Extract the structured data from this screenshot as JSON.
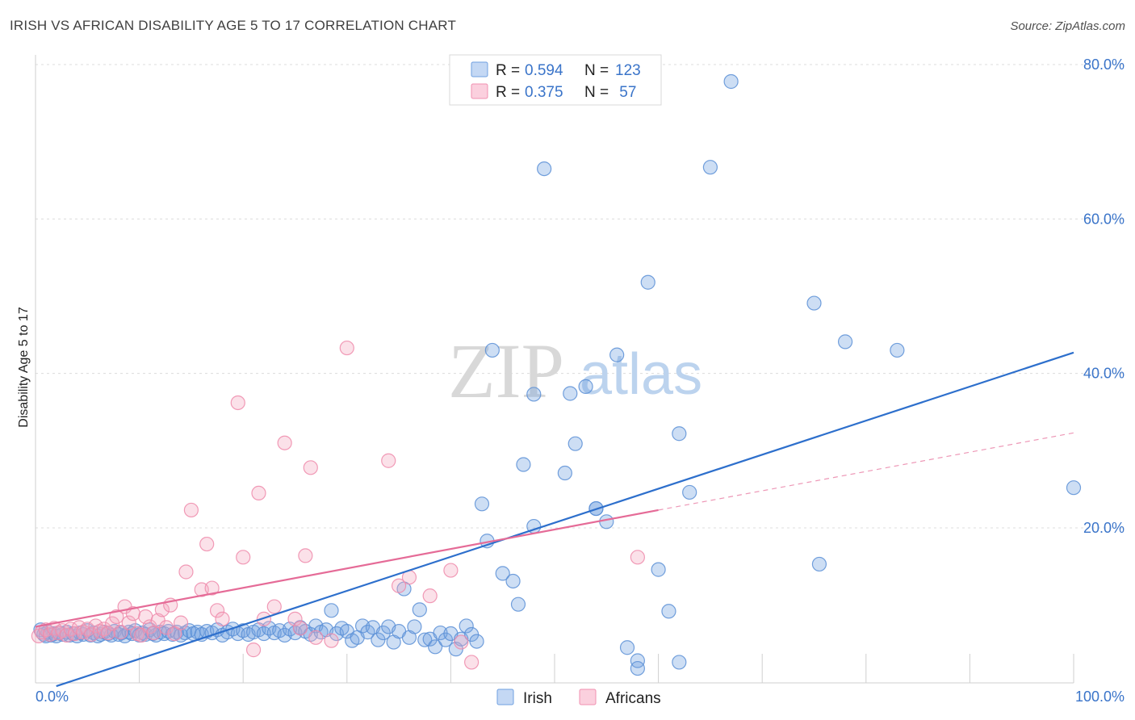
{
  "header": {
    "title": "IRISH VS AFRICAN DISABILITY AGE 5 TO 17 CORRELATION CHART",
    "source": "Source: ZipAtlas.com"
  },
  "watermark": {
    "zip": "ZIP",
    "atlas": "atlas"
  },
  "legend": {
    "rows": [
      {
        "r_label": "R = ",
        "r_value": "0.594",
        "n_label": "N = ",
        "n_value": "123",
        "color": "#6fa0e0"
      },
      {
        "r_label": "R = ",
        "r_value": "0.375",
        "n_label": "N = ",
        "n_value": " 57",
        "color": "#f090b0"
      }
    ]
  },
  "chart_data": {
    "type": "scatter",
    "title": "IRISH VS AFRICAN DISABILITY AGE 5 TO 17 CORRELATION CHART",
    "xlabel": "",
    "ylabel": "Disability Age 5 to 17",
    "xlim": [
      0,
      100
    ],
    "ylim": [
      0,
      80
    ],
    "x_tick_labels": [
      "0.0%",
      "100.0%"
    ],
    "y_ticks": [
      20,
      40,
      60,
      80
    ],
    "y_tick_labels": [
      "20.0%",
      "40.0%",
      "60.0%",
      "80.0%"
    ],
    "grid": true,
    "legend_position": "top-center",
    "series": [
      {
        "name": "Irish",
        "color": "#6fa0e0",
        "stroke": "#5b8fd6",
        "trend": {
          "x": [
            2,
            100
          ],
          "y": [
            -0.5,
            42.7
          ],
          "color": "#2d6fcc"
        },
        "points": [
          [
            0.5,
            6.8
          ],
          [
            0.8,
            6.2
          ],
          [
            1,
            6
          ],
          [
            1.2,
            6.5
          ],
          [
            1.5,
            6.1
          ],
          [
            1.8,
            6.3
          ],
          [
            2,
            6
          ],
          [
            2.3,
            6.4
          ],
          [
            2.6,
            6.2
          ],
          [
            3,
            6.5
          ],
          [
            3.3,
            6.1
          ],
          [
            3.6,
            6.3
          ],
          [
            4,
            6
          ],
          [
            4.3,
            6.4
          ],
          [
            4.6,
            6.2
          ],
          [
            5,
            6.7
          ],
          [
            5.3,
            6.1
          ],
          [
            5.6,
            6.4
          ],
          [
            6,
            6
          ],
          [
            6.3,
            6.2
          ],
          [
            6.6,
            6.5
          ],
          [
            7,
            6.3
          ],
          [
            7.3,
            6.1
          ],
          [
            7.6,
            6.6
          ],
          [
            8,
            6.2
          ],
          [
            8.3,
            6.4
          ],
          [
            8.6,
            6
          ],
          [
            9,
            6.5
          ],
          [
            9.3,
            6.3
          ],
          [
            9.6,
            6.7
          ],
          [
            10,
            6.1
          ],
          [
            10.3,
            6.4
          ],
          [
            10.6,
            6.2
          ],
          [
            11,
            6.8
          ],
          [
            11.3,
            6.3
          ],
          [
            11.6,
            6.1
          ],
          [
            12,
            6.5
          ],
          [
            12.4,
            6.3
          ],
          [
            12.8,
            6.6
          ],
          [
            13.2,
            6.2
          ],
          [
            13.6,
            6.5
          ],
          [
            14,
            6.1
          ],
          [
            14.4,
            6.4
          ],
          [
            14.8,
            6.7
          ],
          [
            15.2,
            6.3
          ],
          [
            15.6,
            6.5
          ],
          [
            16,
            6.2
          ],
          [
            16.5,
            6.6
          ],
          [
            17,
            6.4
          ],
          [
            17.5,
            6.8
          ],
          [
            18,
            6.1
          ],
          [
            18.5,
            6.5
          ],
          [
            19,
            6.9
          ],
          [
            19.5,
            6.3
          ],
          [
            20,
            6.7
          ],
          [
            20.5,
            6.2
          ],
          [
            21,
            6.5
          ],
          [
            21.5,
            6.8
          ],
          [
            22,
            6.3
          ],
          [
            22.5,
            7
          ],
          [
            23,
            6.4
          ],
          [
            23.5,
            6.7
          ],
          [
            24,
            6.1
          ],
          [
            24.5,
            6.9
          ],
          [
            25,
            6.4
          ],
          [
            25.5,
            7.1
          ],
          [
            26,
            6.6
          ],
          [
            26.5,
            6.2
          ],
          [
            27,
            7.3
          ],
          [
            27.5,
            6.5
          ],
          [
            28,
            6.8
          ],
          [
            28.5,
            9.3
          ],
          [
            29,
            6.3
          ],
          [
            29.5,
            7
          ],
          [
            30,
            6.6
          ],
          [
            30.5,
            5.4
          ],
          [
            31,
            5.8
          ],
          [
            31.5,
            7.3
          ],
          [
            32,
            6.5
          ],
          [
            32.5,
            7.1
          ],
          [
            33,
            5.5
          ],
          [
            33.5,
            6.4
          ],
          [
            34,
            7.2
          ],
          [
            34.5,
            5.2
          ],
          [
            35,
            6.6
          ],
          [
            35.5,
            12.1
          ],
          [
            36,
            5.8
          ],
          [
            36.5,
            7.2
          ],
          [
            37,
            9.4
          ],
          [
            37.5,
            5.5
          ],
          [
            38,
            5.6
          ],
          [
            38.5,
            4.6
          ],
          [
            39,
            6.4
          ],
          [
            39.5,
            5.5
          ],
          [
            40,
            6.3
          ],
          [
            40.5,
            4.3
          ],
          [
            41,
            5.6
          ],
          [
            41.5,
            7.3
          ],
          [
            42,
            6.2
          ],
          [
            42.5,
            5.3
          ],
          [
            43,
            23.1
          ],
          [
            43.5,
            18.3
          ],
          [
            44,
            43
          ],
          [
            45,
            14.1
          ],
          [
            46,
            13.1
          ],
          [
            46.5,
            10.1
          ],
          [
            47,
            28.2
          ],
          [
            48,
            20.2
          ],
          [
            48,
            37.3
          ],
          [
            49,
            66.5
          ],
          [
            51,
            27.1
          ],
          [
            51.5,
            37.4
          ],
          [
            52,
            30.9
          ],
          [
            53,
            38.3
          ],
          [
            54,
            22.5
          ],
          [
            54,
            22.5
          ],
          [
            55,
            20.8
          ],
          [
            56,
            42.4
          ],
          [
            57,
            4.5
          ],
          [
            58,
            2.8
          ],
          [
            58,
            1.8
          ],
          [
            59,
            51.8
          ],
          [
            60,
            14.6
          ],
          [
            61,
            9.2
          ],
          [
            62,
            2.6
          ],
          [
            62,
            32.2
          ],
          [
            63,
            24.6
          ],
          [
            65,
            66.7
          ],
          [
            67,
            77.8
          ],
          [
            75,
            49.1
          ],
          [
            75.5,
            15.3
          ],
          [
            78,
            44.1
          ],
          [
            83,
            43
          ],
          [
            100,
            25.2
          ]
        ]
      },
      {
        "name": "Africans",
        "color": "#f4a8c0",
        "stroke": "#ee8aaa",
        "trend": {
          "x": [
            0,
            60
          ],
          "y": [
            7.2,
            22.3
          ],
          "color": "#e56b97"
        },
        "trend_ext": {
          "x": [
            60,
            100
          ],
          "y": [
            22.3,
            32.3
          ]
        },
        "points": [
          [
            0.3,
            6
          ],
          [
            0.6,
            6.5
          ],
          [
            1,
            6.8
          ],
          [
            1.4,
            6.2
          ],
          [
            1.8,
            7
          ],
          [
            2.2,
            6.4
          ],
          [
            2.6,
            6.7
          ],
          [
            3,
            6.1
          ],
          [
            3.4,
            6.9
          ],
          [
            3.8,
            6.3
          ],
          [
            4.2,
            7.1
          ],
          [
            4.6,
            6.5
          ],
          [
            5,
            6.9
          ],
          [
            5.4,
            6.2
          ],
          [
            5.8,
            7.3
          ],
          [
            6.2,
            6.6
          ],
          [
            6.6,
            6.9
          ],
          [
            7,
            6.4
          ],
          [
            7.4,
            7.6
          ],
          [
            7.8,
            8.5
          ],
          [
            8.2,
            6.5
          ],
          [
            8.6,
            9.8
          ],
          [
            9,
            7.7
          ],
          [
            9.4,
            8.9
          ],
          [
            9.8,
            6.3
          ],
          [
            10.2,
            6.1
          ],
          [
            10.6,
            8.5
          ],
          [
            11,
            7.2
          ],
          [
            11.4,
            6.4
          ],
          [
            11.8,
            8
          ],
          [
            12.2,
            9.4
          ],
          [
            12.6,
            7.1
          ],
          [
            13,
            10
          ],
          [
            13.4,
            6.3
          ],
          [
            14,
            7.7
          ],
          [
            14.5,
            14.3
          ],
          [
            15,
            22.3
          ],
          [
            16,
            12
          ],
          [
            16.5,
            17.9
          ],
          [
            17,
            12.2
          ],
          [
            17.5,
            9.3
          ],
          [
            18,
            8.2
          ],
          [
            19.5,
            36.2
          ],
          [
            20,
            16.2
          ],
          [
            21,
            4.2
          ],
          [
            21.5,
            24.5
          ],
          [
            22,
            8.2
          ],
          [
            23,
            9.8
          ],
          [
            24,
            31
          ],
          [
            25,
            8.2
          ],
          [
            25.5,
            7
          ],
          [
            26,
            16.4
          ],
          [
            26.5,
            27.8
          ],
          [
            27,
            5.8
          ],
          [
            28.5,
            5.4
          ],
          [
            30,
            43.3
          ],
          [
            34,
            28.7
          ],
          [
            35,
            12.5
          ],
          [
            36,
            13.6
          ],
          [
            38,
            11.2
          ],
          [
            40,
            14.5
          ],
          [
            41,
            5.2
          ],
          [
            42,
            2.6
          ],
          [
            58,
            16.2
          ]
        ]
      }
    ]
  }
}
